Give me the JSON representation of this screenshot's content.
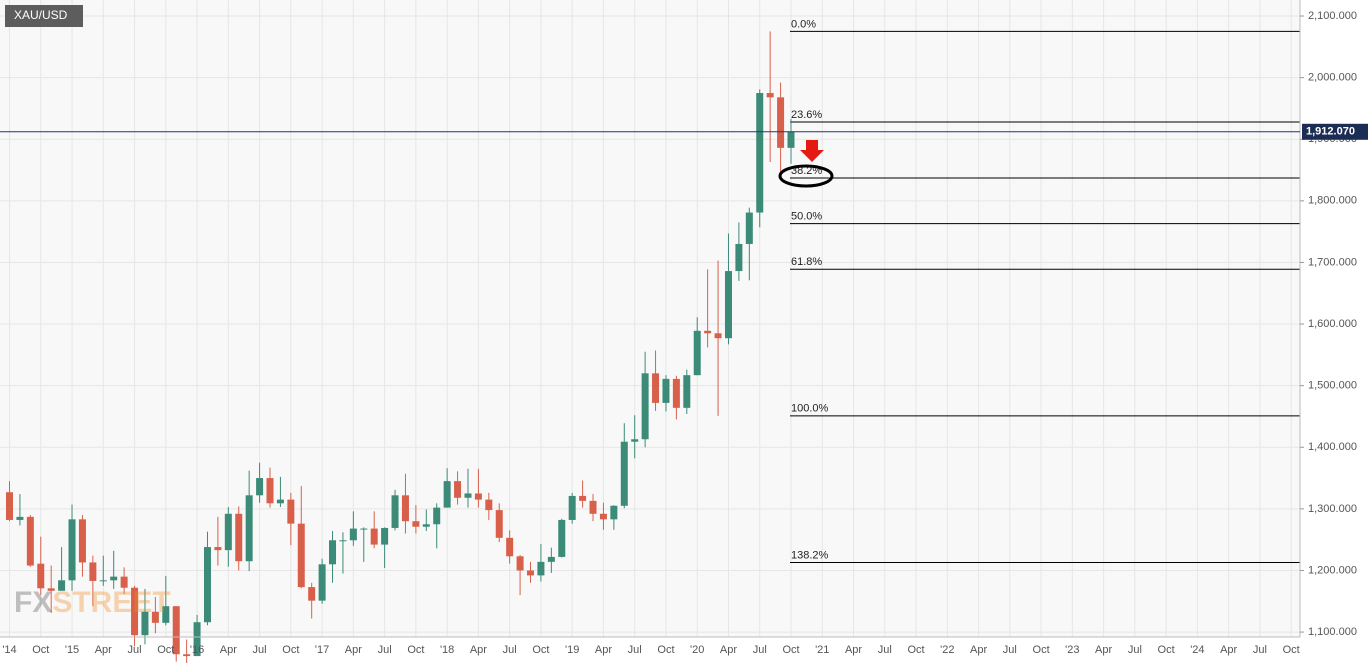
{
  "chart_data": {
    "type": "candlestick",
    "symbol": "XAU/USD",
    "categories": [
      "'14",
      null,
      null,
      "Oct",
      null,
      null,
      "'15",
      null,
      null,
      "Apr",
      null,
      null,
      "Jul",
      null,
      null,
      "Oct",
      null,
      null,
      "'16",
      null,
      null,
      "Apr",
      null,
      null,
      "Jul",
      null,
      null,
      "Oct",
      null,
      null,
      "'17",
      null,
      null,
      "Apr",
      null,
      null,
      "Jul",
      null,
      null,
      "Oct",
      null,
      null,
      "'18",
      null,
      null,
      "Apr",
      null,
      null,
      "Jul",
      null,
      null,
      "Oct",
      null,
      null,
      "'19",
      null,
      null,
      "Apr",
      null,
      null,
      "Jul",
      null,
      null,
      "Oct",
      null,
      null,
      "'20",
      null,
      null,
      "Apr",
      null,
      null,
      "Jul",
      null,
      null,
      "Oct",
      null,
      null,
      "'21",
      null,
      null,
      "Apr",
      null,
      null,
      "Jul",
      null,
      null,
      "Oct",
      null,
      null,
      "'22",
      null,
      null,
      "Apr",
      null,
      null,
      "Jul",
      null,
      null,
      "Oct",
      null,
      null,
      "'23",
      null,
      null,
      "Apr",
      null,
      null,
      "Jul",
      null,
      null,
      "Oct",
      null,
      null,
      "'24",
      null,
      null,
      "Apr",
      null,
      null,
      "Jul",
      null,
      null,
      "Oct"
    ],
    "open": [
      1327,
      1282,
      1287,
      1211,
      1171,
      1167,
      1184,
      1283,
      1213,
      1183,
      1184,
      1190,
      1172,
      1095,
      1133,
      1115,
      1142,
      1064,
      1061,
      1116,
      1238,
      1233,
      1292,
      1215,
      1322,
      1350,
      1309,
      1315,
      1276,
      1173,
      1151,
      1210,
      1249,
      1249,
      1268,
      1268,
      1242,
      1269,
      1322,
      1280,
      1271,
      1275,
      1302,
      1345,
      1318,
      1325,
      1315,
      1298,
      1253,
      1223,
      1200,
      1192,
      1214,
      1222,
      1282,
      1321,
      1313,
      1292,
      1283,
      1305,
      1409,
      1413,
      1520,
      1472,
      1511,
      1464,
      1517,
      1589,
      1585,
      1577,
      1686,
      1730,
      1781,
      1975,
      1968,
      1886,
      null,
      null,
      null,
      null,
      null,
      null,
      null,
      null,
      null,
      null,
      null,
      null,
      null,
      null,
      null,
      null,
      null,
      null,
      null,
      null,
      null,
      null,
      null,
      null,
      null,
      null,
      null,
      null,
      null,
      null,
      null,
      null,
      null,
      null,
      null,
      null,
      null,
      null,
      null,
      null,
      null,
      null,
      null,
      null,
      null,
      null,
      null,
      null
    ],
    "high": [
      1345,
      1324,
      1290,
      1255,
      1208,
      1238,
      1307,
      1290,
      1224,
      1224,
      1232,
      1205,
      1175,
      1170,
      1157,
      1191,
      1142,
      1088,
      1128,
      1263,
      1287,
      1303,
      1304,
      1362,
      1375,
      1367,
      1352,
      1326,
      1337,
      1180,
      1219,
      1264,
      1262,
      1296,
      1270,
      1296,
      1270,
      1331,
      1357,
      1306,
      1299,
      1309,
      1366,
      1361,
      1365,
      1365,
      1326,
      1309,
      1265,
      1225,
      1214,
      1243,
      1237,
      1284,
      1326,
      1346,
      1324,
      1310,
      1306,
      1439,
      1452,
      1555,
      1557,
      1517,
      1516,
      1526,
      1611,
      1689,
      1703,
      1747,
      1765,
      1789,
      1981,
      2075,
      1992,
      1933,
      null,
      null,
      null,
      null,
      null,
      null,
      null,
      null,
      null,
      null,
      null,
      null,
      null,
      null,
      null,
      null,
      null,
      null,
      null,
      null,
      null,
      null,
      null,
      null,
      null,
      null,
      null,
      null,
      null,
      null,
      null,
      null,
      null,
      null,
      null,
      null,
      null,
      null,
      null,
      null,
      null,
      null,
      null,
      null,
      null,
      null,
      null,
      null
    ],
    "low": [
      1280,
      1273,
      1206,
      1160,
      1131,
      1170,
      1167,
      1190,
      1142,
      1175,
      1170,
      1162,
      1077,
      1080,
      1098,
      1111,
      1052,
      1046,
      1062,
      1111,
      1208,
      1206,
      1200,
      1199,
      1310,
      1302,
      1303,
      1241,
      1171,
      1122,
      1146,
      1180,
      1195,
      1240,
      1214,
      1236,
      1204,
      1265,
      1260,
      1260,
      1264,
      1236,
      1302,
      1307,
      1302,
      1302,
      1282,
      1246,
      1211,
      1160,
      1180,
      1182,
      1196,
      1221,
      1276,
      1302,
      1280,
      1266,
      1266,
      1301,
      1382,
      1400,
      1459,
      1458,
      1445,
      1454,
      1517,
      1562,
      1451,
      1567,
      1670,
      1671,
      1757,
      1863,
      1848,
      1860,
      null,
      null,
      null,
      null,
      null,
      null,
      null,
      null,
      null,
      null,
      null,
      null,
      null,
      null,
      null,
      null,
      null,
      null,
      null,
      null,
      null,
      null,
      null,
      null,
      null,
      null,
      null,
      null,
      null,
      null,
      null,
      null,
      null,
      null,
      null,
      null,
      null,
      null,
      null,
      null,
      null,
      null,
      null,
      null,
      null,
      null,
      null,
      null
    ],
    "close": [
      1282,
      1287,
      1208,
      1171,
      1167,
      1184,
      1283,
      1213,
      1183,
      1184,
      1190,
      1172,
      1095,
      1133,
      1115,
      1142,
      1064,
      1061,
      1116,
      1238,
      1233,
      1292,
      1215,
      1322,
      1350,
      1309,
      1315,
      1276,
      1173,
      1151,
      1210,
      1249,
      1249,
      1268,
      1268,
      1242,
      1269,
      1322,
      1280,
      1271,
      1275,
      1302,
      1345,
      1318,
      1325,
      1315,
      1298,
      1253,
      1223,
      1200,
      1192,
      1214,
      1222,
      1282,
      1321,
      1313,
      1292,
      1283,
      1305,
      1409,
      1413,
      1520,
      1472,
      1511,
      1464,
      1517,
      1589,
      1585,
      1577,
      1686,
      1730,
      1781,
      1975,
      1968,
      1886,
      1912,
      null,
      null,
      null,
      null,
      null,
      null,
      null,
      null,
      null,
      null,
      null,
      null,
      null,
      null,
      null,
      null,
      null,
      null,
      null,
      null,
      null,
      null,
      null,
      null,
      null,
      null,
      null,
      null,
      null,
      null,
      null,
      null,
      null,
      null,
      null,
      null,
      null,
      null,
      null,
      null,
      null,
      null,
      null,
      null,
      null,
      null,
      null,
      null
    ],
    "up_color": "#3b8b78",
    "down_color": "#d8604b",
    "ylim": [
      1092,
      2126
    ],
    "yticks": [
      {
        "value": 1100,
        "label": "1,100.000"
      },
      {
        "value": 1200,
        "label": "1,200.000"
      },
      {
        "value": 1300,
        "label": "1,300.000"
      },
      {
        "value": 1400,
        "label": "1,400.000"
      },
      {
        "value": 1500,
        "label": "1,500.000"
      },
      {
        "value": 1600,
        "label": "1,600.000"
      },
      {
        "value": 1700,
        "label": "1,700.000"
      },
      {
        "value": 1800,
        "label": "1,800.000"
      },
      {
        "value": 1900,
        "label": "1,900.000"
      },
      {
        "value": 2000,
        "label": "2,000.000"
      },
      {
        "value": 2100,
        "label": "2,100.000"
      }
    ],
    "grid": true,
    "last_price": {
      "value": 1912.07,
      "label": "1,912.070"
    },
    "fib_levels": [
      {
        "label": "0.0%",
        "value": 2075
      },
      {
        "label": "23.6%",
        "value": 1928
      },
      {
        "label": "38.2%",
        "value": 1837
      },
      {
        "label": "50.0%",
        "value": 1763
      },
      {
        "label": "61.8%",
        "value": 1689
      },
      {
        "label": "100.0%",
        "value": 1451
      },
      {
        "label": "138.2%",
        "value": 1213
      }
    ],
    "watermark": [
      "FX",
      "STREET"
    ]
  }
}
